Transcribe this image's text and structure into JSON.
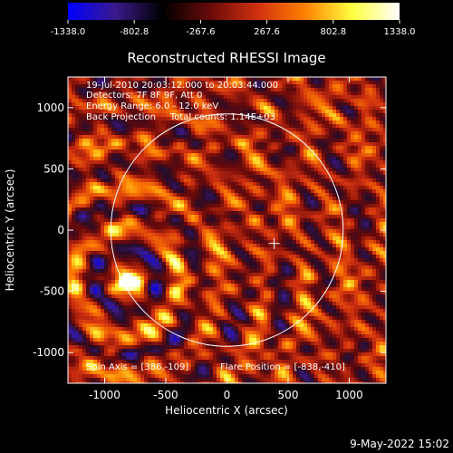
{
  "chart_data": {
    "type": "heatmap",
    "title": "Reconstructed RHESSI Image",
    "xlabel": "Heliocentric X (arcsec)",
    "ylabel": "Heliocentric Y (arcsec)",
    "xlim": [
      -1300,
      1300
    ],
    "ylim": [
      -1250,
      1250
    ],
    "x_ticks": [
      -1000,
      -500,
      0,
      500,
      1000
    ],
    "x_tick_labels": [
      "-1000",
      "-500",
      "0",
      "500",
      "1000"
    ],
    "y_ticks": [
      -1000,
      -500,
      0,
      500,
      1000
    ],
    "y_tick_labels": [
      "-1000",
      "-500",
      "0",
      "500",
      "1000"
    ],
    "colorbar": {
      "min": -1338.0,
      "max": 1338.0,
      "ticks": [
        -1338.0,
        -802.8,
        -267.6,
        267.6,
        802.8,
        1338.0
      ],
      "tick_labels": [
        "-1338.0",
        "-802.8",
        "-267.6",
        "267.6",
        "802.8",
        "1338.0"
      ],
      "stops": [
        "#0000ff",
        "#3a1a8c",
        "#000000",
        "#6a0a0a",
        "#d03010",
        "#ff8000",
        "#ffff40",
        "#ffffff"
      ]
    },
    "annotations": [
      "19-Jul-2010 20:03:12.000 to 20:03:44.000",
      "Detectors: 7F 8F 9F, Att 0",
      "Energy Range: 6.0 - 12.0 keV",
      "Back Projection     Total counts: 1.14E+03"
    ],
    "spin_axis_text": "Spin Axis = [386,-109]",
    "flare_position_text": "Flare Position = [-838,-410]",
    "solar_disk": {
      "center": [
        0,
        0
      ],
      "radius": 950
    },
    "marker": {
      "x": 386,
      "y": -109,
      "symbol": "+"
    },
    "flare_position": [
      -838,
      -410
    ],
    "hot_spot": {
      "x": -838,
      "y": -410,
      "value": 1338.0
    }
  },
  "footer_date": "9-May-2022 15:02"
}
